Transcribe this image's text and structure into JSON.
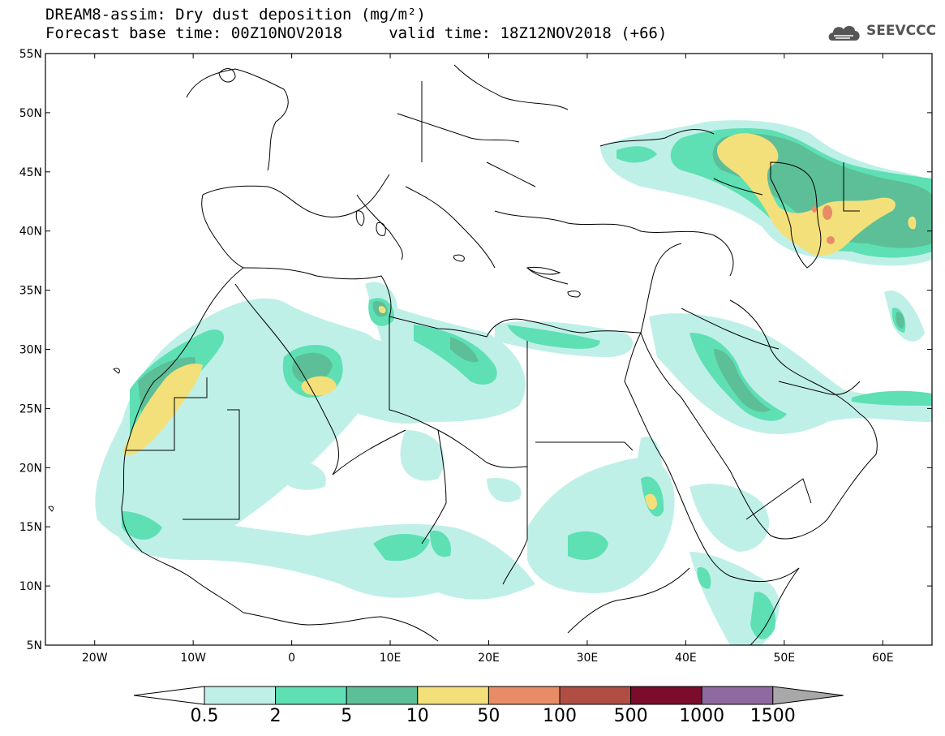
{
  "header": {
    "title_line1": "DREAM8-assim: Dry dust deposition (mg/m²)",
    "title_line2": "Forecast base time: 00Z10NOV2018     valid time: 18Z12NOV2018 (+66)",
    "logo_text": "SEEVCCC"
  },
  "map": {
    "lon_range": [
      -25,
      65
    ],
    "lat_range": [
      5,
      55
    ],
    "lat_ticks": [
      "55N",
      "50N",
      "45N",
      "40N",
      "35N",
      "30N",
      "25N",
      "20N",
      "15N",
      "10N",
      "5N"
    ],
    "lon_ticks": [
      "20W",
      "10W",
      "0",
      "10E",
      "20E",
      "30E",
      "40E",
      "50E",
      "60E"
    ]
  },
  "colorbar": {
    "labels": [
      "0.5",
      "2",
      "5",
      "10",
      "50",
      "100",
      "500",
      "1000",
      "1500"
    ],
    "colors": [
      "#bff0e8",
      "#5ee0b4",
      "#5cbf98",
      "#f4e07a",
      "#e88c68",
      "#b04e44",
      "#7c0c2c",
      "#8e6aa0"
    ],
    "under_color": "#ffffff",
    "over_color": "#a8a8a8"
  },
  "legend_colors": {
    "c0_5": "#bff0e8",
    "c2": "#5ee0b4",
    "c5": "#5cbf98",
    "c10": "#f4e07a",
    "c50": "#e88c68"
  }
}
